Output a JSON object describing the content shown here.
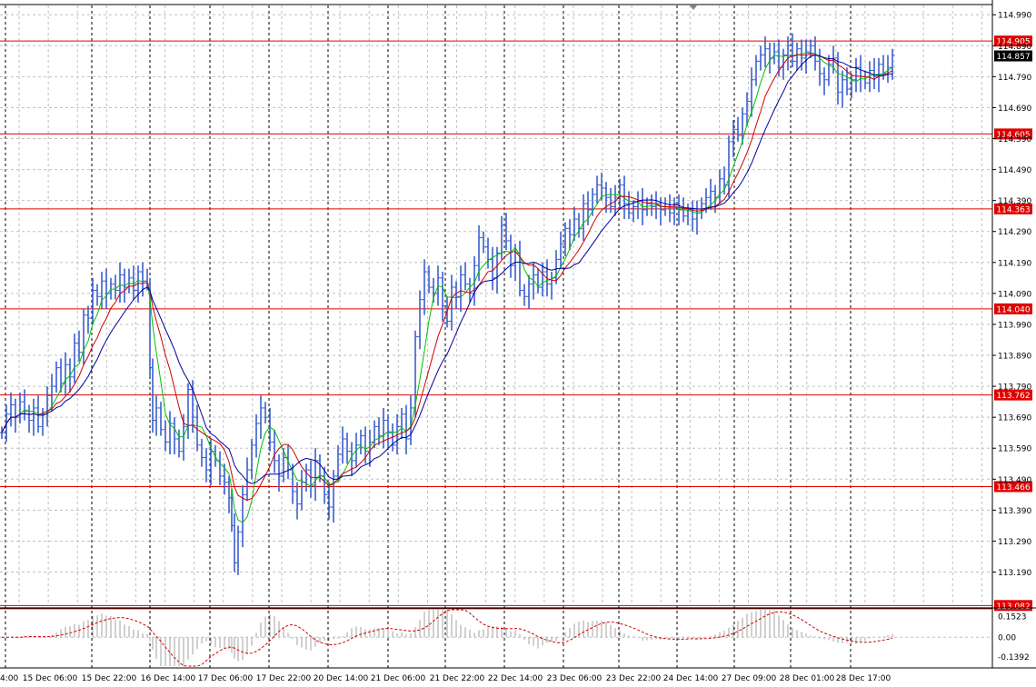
{
  "chart_data": {
    "type": "line",
    "title": "",
    "price_axis": {
      "ticks": [
        "114.990",
        "114.890",
        "114.790",
        "114.690",
        "114.590",
        "114.490",
        "114.390",
        "114.290",
        "114.190",
        "114.090",
        "113.990",
        "113.890",
        "113.790",
        "113.690",
        "113.590",
        "113.490",
        "113.390",
        "113.290",
        "113.190"
      ],
      "range": [
        113.08,
        115.02
      ]
    },
    "time_axis": {
      "ticks": [
        "4:00",
        "15 Dec 06:00",
        "15 Dec 22:00",
        "16 Dec 14:00",
        "17 Dec 06:00",
        "17 Dec 22:00",
        "20 Dec 14:00",
        "21 Dec 06:00",
        "21 Dec 22:00",
        "22 Dec 14:00",
        "23 Dec 06:00",
        "23 Dec 22:00",
        "24 Dec 14:00",
        "27 Dec 09:00",
        "28 Dec 01:00",
        "28 Dec 17:00"
      ]
    },
    "levels": [
      {
        "label": "114.905",
        "value": 114.905
      },
      {
        "label": "114.605",
        "value": 114.605
      },
      {
        "label": "114.363",
        "value": 114.363
      },
      {
        "label": "114.040",
        "value": 114.04
      },
      {
        "label": "113.762",
        "value": 113.762
      },
      {
        "label": "113.466",
        "value": 113.466
      },
      {
        "label": "113.082",
        "value": 113.082
      }
    ],
    "current_price": "114.857",
    "price_series": [
      [
        0,
        113.64
      ],
      [
        5,
        113.7
      ],
      [
        10,
        113.73
      ],
      [
        15,
        113.69
      ],
      [
        20,
        113.74
      ],
      [
        25,
        113.71
      ],
      [
        30,
        113.68
      ],
      [
        35,
        113.72
      ],
      [
        40,
        113.66
      ],
      [
        45,
        113.7
      ],
      [
        50,
        113.76
      ],
      [
        55,
        113.79
      ],
      [
        60,
        113.85
      ],
      [
        65,
        113.8
      ],
      [
        70,
        113.86
      ],
      [
        75,
        113.82
      ],
      [
        80,
        113.93
      ],
      [
        85,
        113.9
      ],
      [
        90,
        114.02
      ],
      [
        95,
        114.01
      ],
      [
        100,
        114.1
      ],
      [
        105,
        114.08
      ],
      [
        110,
        114.13
      ],
      [
        115,
        114.09
      ],
      [
        120,
        114.12
      ],
      [
        125,
        114.1
      ],
      [
        130,
        114.15
      ],
      [
        135,
        114.11
      ],
      [
        140,
        114.14
      ],
      [
        145,
        114.1
      ],
      [
        150,
        114.16
      ],
      [
        155,
        114.13
      ],
      [
        160,
        114.12
      ],
      [
        163,
        113.85
      ],
      [
        166,
        113.68
      ],
      [
        170,
        113.72
      ],
      [
        175,
        113.65
      ],
      [
        180,
        113.61
      ],
      [
        185,
        113.67
      ],
      [
        190,
        113.62
      ],
      [
        195,
        113.58
      ],
      [
        200,
        113.66
      ],
      [
        205,
        113.78
      ],
      [
        210,
        113.69
      ],
      [
        215,
        113.6
      ],
      [
        220,
        113.56
      ],
      [
        225,
        113.52
      ],
      [
        230,
        113.58
      ],
      [
        235,
        113.55
      ],
      [
        240,
        113.5
      ],
      [
        245,
        113.48
      ],
      [
        250,
        113.43
      ],
      [
        253,
        113.34
      ],
      [
        256,
        113.22
      ],
      [
        260,
        113.32
      ],
      [
        265,
        113.44
      ],
      [
        270,
        113.52
      ],
      [
        275,
        113.6
      ],
      [
        280,
        113.67
      ],
      [
        285,
        113.72
      ],
      [
        290,
        113.69
      ],
      [
        295,
        113.61
      ],
      [
        300,
        113.55
      ],
      [
        305,
        113.5
      ],
      [
        310,
        113.56
      ],
      [
        315,
        113.52
      ],
      [
        320,
        113.45
      ],
      [
        325,
        113.41
      ],
      [
        330,
        113.48
      ],
      [
        335,
        113.52
      ],
      [
        340,
        113.47
      ],
      [
        345,
        113.55
      ],
      [
        350,
        113.5
      ],
      [
        355,
        113.44
      ],
      [
        360,
        113.4
      ],
      [
        365,
        113.5
      ],
      [
        370,
        113.57
      ],
      [
        375,
        113.62
      ],
      [
        380,
        113.58
      ],
      [
        385,
        113.55
      ],
      [
        390,
        113.6
      ],
      [
        395,
        113.63
      ],
      [
        400,
        113.58
      ],
      [
        405,
        113.61
      ],
      [
        410,
        113.66
      ],
      [
        415,
        113.63
      ],
      [
        420,
        113.68
      ],
      [
        425,
        113.64
      ],
      [
        430,
        113.6
      ],
      [
        435,
        113.66
      ],
      [
        440,
        113.7
      ],
      [
        445,
        113.62
      ],
      [
        450,
        113.72
      ],
      [
        455,
        113.95
      ],
      [
        460,
        114.07
      ],
      [
        465,
        114.16
      ],
      [
        470,
        114.11
      ],
      [
        475,
        114.09
      ],
      [
        480,
        114.14
      ],
      [
        485,
        114.05
      ],
      [
        490,
        114.0
      ],
      [
        495,
        114.11
      ],
      [
        500,
        114.08
      ],
      [
        505,
        114.15
      ],
      [
        510,
        114.12
      ],
      [
        515,
        114.09
      ],
      [
        520,
        114.18
      ],
      [
        525,
        114.27
      ],
      [
        530,
        114.24
      ],
      [
        535,
        114.2
      ],
      [
        540,
        114.14
      ],
      [
        545,
        114.22
      ],
      [
        550,
        114.31
      ],
      [
        555,
        114.26
      ],
      [
        560,
        114.18
      ],
      [
        565,
        114.22
      ],
      [
        570,
        114.1
      ],
      [
        575,
        114.08
      ],
      [
        580,
        114.12
      ],
      [
        585,
        114.15
      ],
      [
        590,
        114.11
      ],
      [
        595,
        114.16
      ],
      [
        600,
        114.12
      ],
      [
        605,
        114.14
      ],
      [
        610,
        114.2
      ],
      [
        615,
        114.25
      ],
      [
        620,
        114.3
      ],
      [
        625,
        114.28
      ],
      [
        630,
        114.33
      ],
      [
        635,
        114.3
      ],
      [
        640,
        114.38
      ],
      [
        645,
        114.36
      ],
      [
        650,
        114.41
      ],
      [
        655,
        114.44
      ],
      [
        660,
        114.43
      ],
      [
        665,
        114.4
      ],
      [
        670,
        114.37
      ],
      [
        675,
        114.4
      ],
      [
        680,
        114.44
      ],
      [
        685,
        114.38
      ],
      [
        690,
        114.35
      ],
      [
        695,
        114.37
      ],
      [
        700,
        114.39
      ],
      [
        705,
        114.36
      ],
      [
        710,
        114.38
      ],
      [
        715,
        114.37
      ],
      [
        720,
        114.38
      ],
      [
        725,
        114.36
      ],
      [
        730,
        114.37
      ],
      [
        735,
        114.35
      ],
      [
        740,
        114.38
      ],
      [
        745,
        114.36
      ],
      [
        750,
        114.34
      ],
      [
        755,
        114.36
      ],
      [
        760,
        114.33
      ],
      [
        765,
        114.35
      ],
      [
        770,
        114.38
      ],
      [
        775,
        114.4
      ],
      [
        780,
        114.42
      ],
      [
        785,
        114.4
      ],
      [
        790,
        114.46
      ],
      [
        795,
        114.44
      ],
      [
        800,
        114.58
      ],
      [
        805,
        114.62
      ],
      [
        810,
        114.6
      ],
      [
        815,
        114.67
      ],
      [
        820,
        114.71
      ],
      [
        825,
        114.78
      ],
      [
        830,
        114.84
      ],
      [
        835,
        114.86
      ],
      [
        840,
        114.88
      ],
      [
        845,
        114.85
      ],
      [
        850,
        114.87
      ],
      [
        855,
        114.82
      ],
      [
        860,
        114.86
      ],
      [
        865,
        114.89
      ],
      [
        870,
        114.84
      ],
      [
        875,
        114.88
      ],
      [
        880,
        114.85
      ],
      [
        885,
        114.87
      ],
      [
        890,
        114.89
      ],
      [
        895,
        114.84
      ],
      [
        900,
        114.8
      ],
      [
        905,
        114.78
      ],
      [
        910,
        114.83
      ],
      [
        915,
        114.85
      ],
      [
        920,
        114.74
      ],
      [
        925,
        114.78
      ],
      [
        930,
        114.75
      ],
      [
        935,
        114.78
      ],
      [
        940,
        114.82
      ],
      [
        945,
        114.79
      ],
      [
        950,
        114.77
      ],
      [
        955,
        114.81
      ],
      [
        960,
        114.79
      ],
      [
        965,
        114.83
      ],
      [
        970,
        114.8
      ],
      [
        975,
        114.82
      ],
      [
        980,
        114.86
      ]
    ],
    "indicator": {
      "ticks": [
        "0.1523",
        "0.00",
        "-0.1392"
      ],
      "range": [
        -0.21,
        0.2
      ]
    }
  }
}
